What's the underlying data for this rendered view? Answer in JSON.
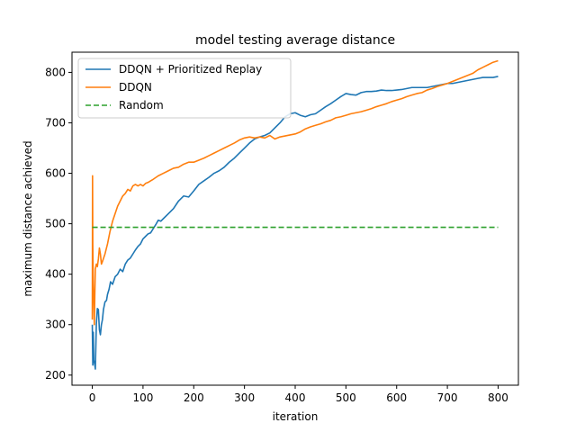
{
  "chart_data": {
    "type": "line",
    "title": "model testing average distance",
    "xlabel": "iteration",
    "ylabel": "maximum distance achieved",
    "xlim": [
      -40,
      840
    ],
    "ylim": [
      180,
      840
    ],
    "xticks": [
      0,
      100,
      200,
      300,
      400,
      500,
      600,
      700,
      800
    ],
    "yticks": [
      200,
      300,
      400,
      500,
      600,
      700,
      800
    ],
    "grid": false,
    "legend_position": "top-left",
    "series": [
      {
        "name": "DDQN + Prioritized Replay",
        "color": "#1f77b4",
        "style": "solid",
        "points": [
          [
            0,
            300
          ],
          [
            1,
            220
          ],
          [
            2,
            285
          ],
          [
            3,
            230
          ],
          [
            5,
            220
          ],
          [
            6,
            212
          ],
          [
            8,
            300
          ],
          [
            10,
            332
          ],
          [
            12,
            330
          ],
          [
            14,
            290
          ],
          [
            16,
            280
          ],
          [
            18,
            300
          ],
          [
            20,
            310
          ],
          [
            22,
            330
          ],
          [
            25,
            345
          ],
          [
            28,
            348
          ],
          [
            30,
            360
          ],
          [
            33,
            370
          ],
          [
            36,
            385
          ],
          [
            40,
            380
          ],
          [
            45,
            395
          ],
          [
            50,
            400
          ],
          [
            55,
            410
          ],
          [
            60,
            405
          ],
          [
            65,
            420
          ],
          [
            70,
            428
          ],
          [
            75,
            432
          ],
          [
            80,
            440
          ],
          [
            85,
            448
          ],
          [
            90,
            455
          ],
          [
            95,
            460
          ],
          [
            100,
            470
          ],
          [
            105,
            475
          ],
          [
            110,
            480
          ],
          [
            115,
            482
          ],
          [
            120,
            490
          ],
          [
            125,
            498
          ],
          [
            130,
            507
          ],
          [
            135,
            505
          ],
          [
            140,
            510
          ],
          [
            150,
            520
          ],
          [
            160,
            530
          ],
          [
            170,
            545
          ],
          [
            180,
            555
          ],
          [
            190,
            553
          ],
          [
            200,
            565
          ],
          [
            210,
            578
          ],
          [
            220,
            585
          ],
          [
            230,
            592
          ],
          [
            240,
            600
          ],
          [
            250,
            605
          ],
          [
            260,
            612
          ],
          [
            270,
            622
          ],
          [
            280,
            630
          ],
          [
            290,
            640
          ],
          [
            300,
            650
          ],
          [
            310,
            660
          ],
          [
            320,
            668
          ],
          [
            330,
            672
          ],
          [
            340,
            675
          ],
          [
            350,
            680
          ],
          [
            360,
            690
          ],
          [
            370,
            700
          ],
          [
            380,
            712
          ],
          [
            390,
            718
          ],
          [
            400,
            720
          ],
          [
            410,
            715
          ],
          [
            420,
            712
          ],
          [
            430,
            716
          ],
          [
            440,
            718
          ],
          [
            450,
            725
          ],
          [
            460,
            732
          ],
          [
            470,
            738
          ],
          [
            480,
            745
          ],
          [
            490,
            752
          ],
          [
            500,
            758
          ],
          [
            510,
            756
          ],
          [
            520,
            755
          ],
          [
            530,
            760
          ],
          [
            540,
            762
          ],
          [
            550,
            762
          ],
          [
            560,
            763
          ],
          [
            570,
            765
          ],
          [
            580,
            764
          ],
          [
            590,
            764
          ],
          [
            600,
            765
          ],
          [
            610,
            766
          ],
          [
            620,
            768
          ],
          [
            630,
            770
          ],
          [
            640,
            770
          ],
          [
            650,
            770
          ],
          [
            660,
            770
          ],
          [
            670,
            772
          ],
          [
            680,
            774
          ],
          [
            690,
            776
          ],
          [
            700,
            778
          ],
          [
            710,
            778
          ],
          [
            720,
            780
          ],
          [
            730,
            782
          ],
          [
            740,
            784
          ],
          [
            750,
            786
          ],
          [
            760,
            788
          ],
          [
            770,
            790
          ],
          [
            780,
            790
          ],
          [
            790,
            790
          ],
          [
            800,
            792
          ]
        ]
      },
      {
        "name": "DDQN",
        "color": "#ff7f0e",
        "style": "solid",
        "points": [
          [
            0,
            310
          ],
          [
            0.5,
            595
          ],
          [
            1,
            460
          ],
          [
            2,
            380
          ],
          [
            3,
            340
          ],
          [
            4,
            300
          ],
          [
            5,
            360
          ],
          [
            6,
            410
          ],
          [
            8,
            420
          ],
          [
            10,
            415
          ],
          [
            12,
            430
          ],
          [
            14,
            452
          ],
          [
            16,
            440
          ],
          [
            18,
            420
          ],
          [
            20,
            425
          ],
          [
            25,
            440
          ],
          [
            30,
            460
          ],
          [
            35,
            485
          ],
          [
            40,
            505
          ],
          [
            45,
            520
          ],
          [
            50,
            535
          ],
          [
            55,
            545
          ],
          [
            60,
            555
          ],
          [
            65,
            560
          ],
          [
            70,
            568
          ],
          [
            75,
            565
          ],
          [
            80,
            575
          ],
          [
            85,
            578
          ],
          [
            90,
            575
          ],
          [
            95,
            578
          ],
          [
            100,
            575
          ],
          [
            105,
            580
          ],
          [
            110,
            582
          ],
          [
            115,
            585
          ],
          [
            120,
            588
          ],
          [
            130,
            595
          ],
          [
            140,
            600
          ],
          [
            150,
            605
          ],
          [
            160,
            610
          ],
          [
            170,
            612
          ],
          [
            180,
            618
          ],
          [
            190,
            622
          ],
          [
            200,
            622
          ],
          [
            210,
            626
          ],
          [
            220,
            630
          ],
          [
            230,
            635
          ],
          [
            240,
            640
          ],
          [
            250,
            645
          ],
          [
            260,
            650
          ],
          [
            270,
            655
          ],
          [
            280,
            660
          ],
          [
            290,
            666
          ],
          [
            300,
            670
          ],
          [
            310,
            672
          ],
          [
            320,
            670
          ],
          [
            330,
            672
          ],
          [
            340,
            670
          ],
          [
            350,
            675
          ],
          [
            360,
            668
          ],
          [
            370,
            672
          ],
          [
            380,
            674
          ],
          [
            390,
            676
          ],
          [
            400,
            678
          ],
          [
            410,
            682
          ],
          [
            420,
            688
          ],
          [
            430,
            692
          ],
          [
            440,
            695
          ],
          [
            450,
            698
          ],
          [
            460,
            702
          ],
          [
            470,
            705
          ],
          [
            480,
            710
          ],
          [
            490,
            712
          ],
          [
            500,
            715
          ],
          [
            510,
            718
          ],
          [
            520,
            720
          ],
          [
            530,
            722
          ],
          [
            540,
            725
          ],
          [
            550,
            728
          ],
          [
            560,
            732
          ],
          [
            570,
            735
          ],
          [
            580,
            738
          ],
          [
            590,
            742
          ],
          [
            600,
            745
          ],
          [
            610,
            748
          ],
          [
            620,
            752
          ],
          [
            630,
            755
          ],
          [
            640,
            758
          ],
          [
            650,
            760
          ],
          [
            660,
            765
          ],
          [
            670,
            768
          ],
          [
            680,
            772
          ],
          [
            690,
            775
          ],
          [
            700,
            778
          ],
          [
            710,
            782
          ],
          [
            720,
            786
          ],
          [
            730,
            790
          ],
          [
            740,
            794
          ],
          [
            750,
            798
          ],
          [
            760,
            805
          ],
          [
            770,
            810
          ],
          [
            780,
            815
          ],
          [
            790,
            820
          ],
          [
            800,
            823
          ]
        ]
      },
      {
        "name": "Random",
        "color": "#2ca02c",
        "style": "dashed",
        "points": [
          [
            0,
            493
          ],
          [
            800,
            493
          ]
        ]
      }
    ]
  }
}
